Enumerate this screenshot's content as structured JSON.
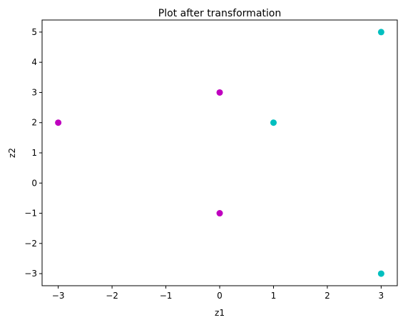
{
  "chart_data": {
    "type": "scatter",
    "title": "Plot after transformation",
    "xlabel": "z1",
    "ylabel": "z2",
    "xlim": [
      -3.3,
      3.3
    ],
    "ylim": [
      -3.4,
      5.4
    ],
    "grid": false,
    "xticks": [
      -3,
      -2,
      -1,
      0,
      1,
      2,
      3
    ],
    "yticks": [
      -3,
      -2,
      -1,
      0,
      1,
      2,
      3,
      4,
      5
    ],
    "xtick_labels": [
      "−3",
      "−2",
      "−1",
      "0",
      "1",
      "2",
      "3"
    ],
    "ytick_labels": [
      "−3",
      "−2",
      "−1",
      "0",
      "1",
      "2",
      "3",
      "4",
      "5"
    ],
    "series": [
      {
        "color": "#bf00bf",
        "x": [
          -3,
          0,
          0
        ],
        "y": [
          2,
          3,
          -1
        ]
      },
      {
        "color": "#00bfbf",
        "x": [
          1,
          3,
          3
        ],
        "y": [
          2,
          5,
          -3
        ]
      }
    ]
  }
}
